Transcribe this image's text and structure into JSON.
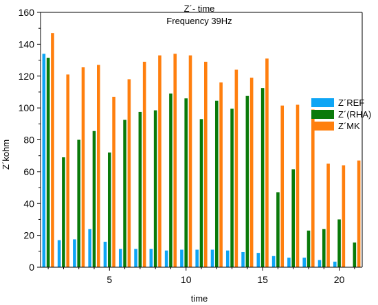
{
  "chart_data": {
    "type": "bar",
    "title": "Z´- time",
    "subtitle": "Frequency 39Hz",
    "xlabel": "time",
    "ylabel": "Z´kohm",
    "x": [
      1,
      2,
      3,
      4,
      5,
      6,
      7,
      8,
      9,
      10,
      11,
      12,
      13,
      14,
      15,
      16,
      17,
      18,
      19,
      20,
      21
    ],
    "xticks": [
      5,
      10,
      15,
      20
    ],
    "ylim": [
      0,
      160
    ],
    "yticks": [
      0,
      20,
      40,
      60,
      80,
      100,
      120,
      140,
      160
    ],
    "legend_position": "right",
    "grid": false,
    "series": [
      {
        "name": "Z´REF",
        "color": "#0ea5f5",
        "values": [
          134,
          17,
          17.5,
          24,
          16,
          11.5,
          11.5,
          11.5,
          10.5,
          11,
          11,
          11,
          10.5,
          9.5,
          9,
          7,
          6,
          6,
          4.5,
          3.5,
          0
        ]
      },
      {
        "name": "Z´(RHA)",
        "color": "#0a7a0a",
        "values": [
          131.5,
          69,
          80,
          85.5,
          72,
          92.5,
          97.5,
          98.5,
          109,
          106,
          93,
          104.5,
          99.5,
          107.5,
          112.5,
          47,
          61.5,
          23,
          24,
          30,
          15.5
        ]
      },
      {
        "name": "Z´MK",
        "color": "#ff7f0e",
        "values": [
          147,
          121,
          125.5,
          127,
          107,
          118,
          129,
          133,
          134,
          133,
          129,
          116,
          124,
          119,
          131,
          101.5,
          102,
          99,
          65,
          64,
          67
        ]
      }
    ]
  }
}
